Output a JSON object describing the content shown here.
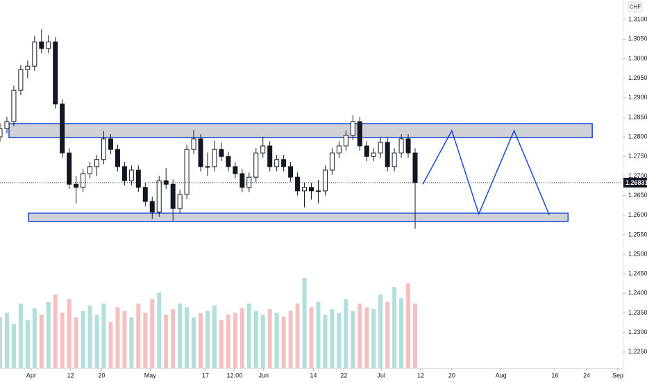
{
  "chart_data": {
    "type": "candlestick",
    "currency": "CHF",
    "x": [
      0,
      1,
      2,
      3,
      4,
      5,
      6,
      7,
      8,
      9,
      10,
      11,
      12,
      13,
      14,
      15,
      16,
      17,
      18,
      19,
      20,
      21,
      22,
      23,
      24,
      25,
      26,
      27,
      28,
      29,
      30,
      31,
      32,
      33,
      34,
      35,
      36,
      37,
      38,
      39,
      40,
      41,
      42,
      43,
      44,
      45,
      46,
      47,
      48,
      49,
      50,
      51,
      52,
      53,
      54,
      55,
      56,
      57,
      58,
      59,
      60
    ],
    "open": [
      1.28,
      1.2821,
      1.2839,
      1.2919,
      1.2972,
      1.2981,
      1.3043,
      1.3026,
      1.3043,
      1.2884,
      1.2759,
      1.2679,
      1.2671,
      1.2706,
      1.2724,
      1.2742,
      1.2795,
      1.2768,
      1.2724,
      1.2688,
      1.2715,
      1.2671,
      1.2635,
      1.2608,
      1.2688,
      1.2679,
      1.2617,
      1.2653,
      1.2768,
      1.2795,
      1.2724,
      1.2724,
      1.2768,
      1.275,
      1.2724,
      1.2706,
      1.2671,
      1.2697,
      1.2759,
      1.2777,
      1.2724,
      1.2742,
      1.2724,
      1.2697,
      1.2662,
      1.2671,
      1.2662,
      1.2662,
      1.2715,
      1.2759,
      1.2777,
      1.2804,
      1.2839,
      1.2777,
      1.275,
      1.2759,
      1.2786,
      1.2724,
      1.2759,
      1.2795,
      1.2759
    ],
    "high": [
      1.2835,
      1.2851,
      1.2931,
      1.2984,
      1.2995,
      1.3058,
      1.3075,
      1.306,
      1.3055,
      1.2896,
      1.2771,
      1.27,
      1.2718,
      1.2736,
      1.2754,
      1.2815,
      1.2807,
      1.278,
      1.2736,
      1.2727,
      1.2727,
      1.2683,
      1.2647,
      1.27,
      1.272,
      1.2691,
      1.2665,
      1.278,
      1.2818,
      1.2807,
      1.276,
      1.279,
      1.2785,
      1.2762,
      1.2736,
      1.2718,
      1.2709,
      1.2771,
      1.28,
      1.2789,
      1.2754,
      1.2754,
      1.2736,
      1.2709,
      1.2683,
      1.2683,
      1.269,
      1.2727,
      1.2771,
      1.2789,
      1.2816,
      1.2855,
      1.2851,
      1.2789,
      1.2771,
      1.2798,
      1.2798,
      1.2771,
      1.2807,
      1.2807,
      1.2771
    ],
    "low": [
      1.2788,
      1.2809,
      1.2827,
      1.2907,
      1.295,
      1.2969,
      1.3014,
      1.3014,
      1.2872,
      1.2747,
      1.2667,
      1.263,
      1.2659,
      1.2694,
      1.27,
      1.273,
      1.2756,
      1.2712,
      1.2676,
      1.2676,
      1.2659,
      1.2623,
      1.259,
      1.2596,
      1.2667,
      1.2585,
      1.2605,
      1.2641,
      1.2756,
      1.2712,
      1.27,
      1.2712,
      1.2738,
      1.2712,
      1.2694,
      1.2659,
      1.2659,
      1.2685,
      1.2747,
      1.2712,
      1.2712,
      1.2712,
      1.2685,
      1.265,
      1.262,
      1.264,
      1.263,
      1.265,
      1.2703,
      1.2747,
      1.2765,
      1.2792,
      1.2765,
      1.2738,
      1.2738,
      1.2747,
      1.2712,
      1.2712,
      1.2747,
      1.2747,
      1.2565
    ],
    "close": [
      1.2821,
      1.2839,
      1.2919,
      1.2972,
      1.2981,
      1.3043,
      1.3026,
      1.3043,
      1.2884,
      1.2759,
      1.2679,
      1.2671,
      1.2706,
      1.2724,
      1.2742,
      1.2795,
      1.2768,
      1.2724,
      1.2688,
      1.2715,
      1.2671,
      1.2635,
      1.2608,
      1.2688,
      1.2679,
      1.2617,
      1.2653,
      1.2768,
      1.2795,
      1.2724,
      1.2724,
      1.2768,
      1.275,
      1.2724,
      1.2706,
      1.2671,
      1.2697,
      1.2759,
      1.2777,
      1.2724,
      1.2742,
      1.2724,
      1.2697,
      1.2662,
      1.2671,
      1.2662,
      1.2662,
      1.2715,
      1.2759,
      1.2777,
      1.2804,
      1.2839,
      1.2777,
      1.275,
      1.2759,
      1.2786,
      1.2724,
      1.2759,
      1.2795,
      1.2759,
      1.2683
    ],
    "volume": [
      55,
      60,
      48,
      70,
      52,
      65,
      58,
      72,
      80,
      60,
      75,
      55,
      62,
      68,
      58,
      70,
      50,
      66,
      62,
      55,
      70,
      60,
      75,
      82,
      58,
      64,
      70,
      66,
      55,
      60,
      62,
      68,
      52,
      58,
      60,
      65,
      70,
      62,
      58,
      64,
      60,
      56,
      62,
      70,
      98,
      66,
      72,
      58,
      64,
      60,
      75,
      62,
      70,
      66,
      64,
      80,
      72,
      88,
      76,
      92,
      70
    ],
    "up_color": "#ffffff",
    "down_color": "#131722",
    "volume_up_color": "#b2dfdb",
    "volume_down_color": "#f5c0c0",
    "zones": [
      {
        "x": [
          1.3,
          85.6
        ],
        "y": [
          1.2798,
          1.2834
        ],
        "color": "#1848d8"
      },
      {
        "x": [
          4.1,
          82.1
        ],
        "y": [
          1.2584,
          1.2605
        ],
        "color": "#1848d8"
      }
    ],
    "projection": {
      "x": [
        61.1,
        65.3,
        69.2,
        74.3,
        79.4
      ],
      "y": [
        1.2679,
        1.2816,
        1.2603,
        1.2816,
        1.26
      ],
      "color": "#1848d8"
    },
    "last_price": 1.26831,
    "xlim": [
      0,
      90
    ],
    "xticks": [
      {
        "value": 4.5,
        "label": "Apr"
      },
      {
        "value": 10.2,
        "label": "12"
      },
      {
        "value": 14.7,
        "label": "20"
      },
      {
        "value": 21.7,
        "label": "May"
      },
      {
        "value": 29.7,
        "label": "17"
      },
      {
        "value": 33.9,
        "label": "12:00"
      },
      {
        "value": 38.1,
        "label": "Jun"
      },
      {
        "value": 45.3,
        "label": "14"
      },
      {
        "value": 49.7,
        "label": "22"
      },
      {
        "value": 55.1,
        "label": "Jul"
      },
      {
        "value": 60.8,
        "label": "12"
      },
      {
        "value": 65.3,
        "label": "20"
      },
      {
        "value": 72.4,
        "label": "Aug"
      },
      {
        "value": 80.2,
        "label": "16"
      },
      {
        "value": 84.8,
        "label": "24"
      },
      {
        "value": 89.3,
        "label": "Sep"
      }
    ],
    "ylim": [
      1.22,
      1.315
    ],
    "yticks": [
      {
        "value": 1.31,
        "label": "1.31000"
      },
      {
        "value": 1.305,
        "label": "1.30500"
      },
      {
        "value": 1.3,
        "label": "1.30000"
      },
      {
        "value": 1.295,
        "label": "1.29500"
      },
      {
        "value": 1.29,
        "label": "1.29000"
      },
      {
        "value": 1.285,
        "label": "1.28500"
      },
      {
        "value": 1.28,
        "label": "1.28000"
      },
      {
        "value": 1.275,
        "label": "1.27500"
      },
      {
        "value": 1.27,
        "label": "1.27000"
      },
      {
        "value": 1.265,
        "label": "1.26500"
      },
      {
        "value": 1.26,
        "label": "1.26000"
      },
      {
        "value": 1.255,
        "label": "1.25500"
      },
      {
        "value": 1.25,
        "label": "1.25000"
      },
      {
        "value": 1.245,
        "label": "1.24500"
      },
      {
        "value": 1.24,
        "label": "1.24000"
      },
      {
        "value": 1.235,
        "label": "1.23500"
      },
      {
        "value": 1.23,
        "label": "1.23000"
      },
      {
        "value": 1.225,
        "label": "1.22500"
      }
    ]
  }
}
